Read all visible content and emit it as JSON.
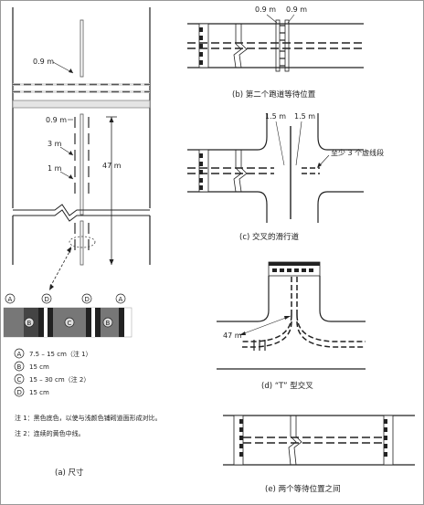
{
  "panel_a": {
    "dim_09m_top": "0.9 m",
    "dim_09m": "0.9 m",
    "dim_3m": "3 m",
    "dim_1m": "1 m",
    "dim_47m": "47 m",
    "marker_letters": [
      "A",
      "B",
      "C",
      "D"
    ],
    "legend": [
      {
        "letter": "A",
        "text": "7.5 – 15 cm（注 1）"
      },
      {
        "letter": "B",
        "text": "15 cm"
      },
      {
        "letter": "C",
        "text": "15 – 30 cm（注 2）"
      },
      {
        "letter": "D",
        "text": "15 cm"
      }
    ],
    "note1": "注 1：黑色底色，以使与浅颜色铺砌道面形成对比。",
    "note2": "注 2：连续的黄色中线。",
    "caption": "(a) 尺寸"
  },
  "panel_b": {
    "dim_left": "0.9 m",
    "dim_right": "0.9 m",
    "caption": "(b) 第二个跑道等待位置"
  },
  "panel_c": {
    "dim_left": "1.5 m",
    "dim_right": "1.5 m",
    "annotation": "至少 3 个虚线段",
    "caption": "(c) 交叉的滑行道"
  },
  "panel_d": {
    "dim_47m": "47 m",
    "caption": "(d) “T” 型交叉"
  },
  "panel_e": {
    "caption": "(e) 两个等待位置之间"
  }
}
